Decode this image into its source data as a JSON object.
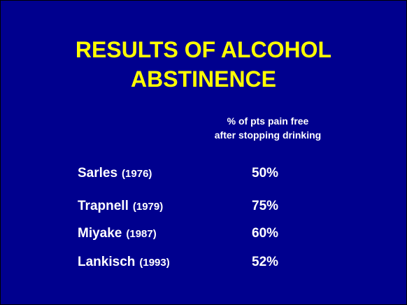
{
  "title": {
    "lines": [
      "RESULTS OF ALCOHOL",
      "ABSTINENCE"
    ]
  },
  "table": {
    "header": [
      "% of pts pain free",
      "after stopping drinking"
    ],
    "rows": [
      {
        "name": "Sarles",
        "year": "(1976)",
        "value": "50%"
      },
      {
        "name": "Trapnell",
        "year": "(1979)",
        "value": "75%"
      },
      {
        "name": "Miyake",
        "year": "(1987)",
        "value": "60%"
      },
      {
        "name": "Lankisch",
        "year": "(1993)",
        "value": "52%"
      }
    ]
  }
}
